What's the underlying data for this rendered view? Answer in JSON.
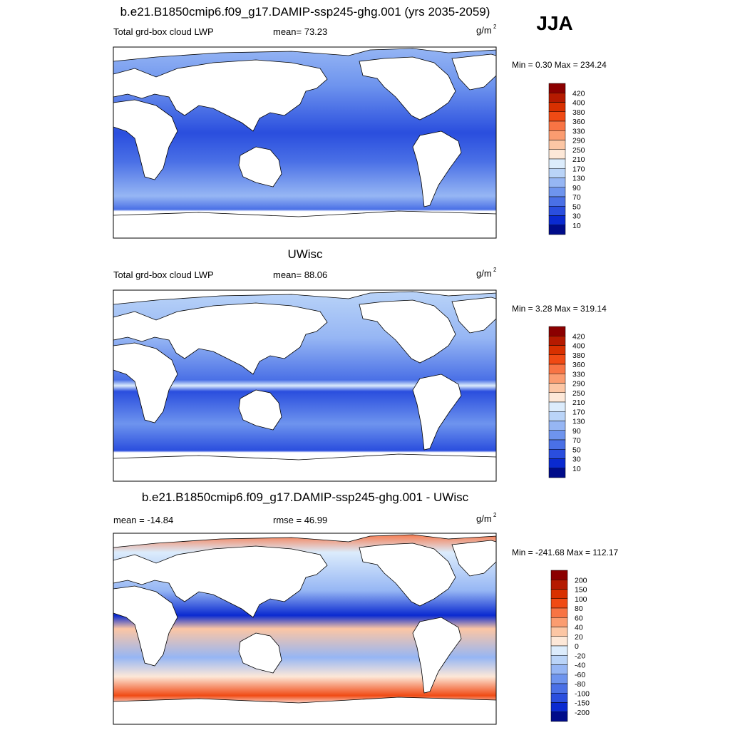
{
  "super_title": "JJA",
  "panels": [
    {
      "title": "b.e21.B1850cmip6.f09_g17.DAMIP-ssp245-ghg.001 (yrs 2035-2059)",
      "left_label": "Total grd-box cloud LWP",
      "center_label": "mean=  73.23",
      "units": "g/m",
      "units_exponent": "2",
      "min_max": "Min =   0.30 Max = 234.24",
      "colorbar": {
        "labels": [
          "420",
          "400",
          "380",
          "360",
          "330",
          "290",
          "250",
          "210",
          "170",
          "130",
          "90",
          "70",
          "50",
          "30",
          "10"
        ],
        "colors": [
          "#8b0000",
          "#b51a00",
          "#d83000",
          "#f04a14",
          "#f87444",
          "#fb9c70",
          "#fcc6a4",
          "#fde8d8",
          "#dcecfc",
          "#bad4f8",
          "#96b6f4",
          "#6e94ee",
          "#4a70e6",
          "#2a4ede",
          "#0a2ad0",
          "#000c8a"
        ]
      }
    },
    {
      "title": "UWisc",
      "left_label": "Total grd-box cloud LWP",
      "center_label": "mean=  88.06",
      "units": "g/m",
      "units_exponent": "2",
      "min_max": "Min =   3.28 Max = 319.14",
      "colorbar": {
        "labels": [
          "420",
          "400",
          "380",
          "360",
          "330",
          "290",
          "250",
          "210",
          "170",
          "130",
          "90",
          "70",
          "50",
          "30",
          "10"
        ],
        "colors": [
          "#8b0000",
          "#b51a00",
          "#d83000",
          "#f04a14",
          "#f87444",
          "#fb9c70",
          "#fcc6a4",
          "#fde8d8",
          "#dcecfc",
          "#bad4f8",
          "#96b6f4",
          "#6e94ee",
          "#4a70e6",
          "#2a4ede",
          "#0a2ad0",
          "#000c8a"
        ]
      }
    },
    {
      "title": "b.e21.B1850cmip6.f09_g17.DAMIP-ssp245-ghg.001 - UWisc",
      "left_label": "mean = -14.84",
      "center_label": "rmse =  46.99",
      "units": "g/m",
      "units_exponent": "2",
      "min_max": "Min = -241.68 Max = 112.17",
      "colorbar": {
        "labels": [
          "200",
          "150",
          "100",
          "80",
          "60",
          "40",
          "20",
          "0",
          "-20",
          "-40",
          "-60",
          "-80",
          "-100",
          "-150",
          "-200"
        ],
        "colors": [
          "#8b0000",
          "#b51a00",
          "#d83000",
          "#f04a14",
          "#f87444",
          "#fb9c70",
          "#fcc6a4",
          "#fde8d8",
          "#dcecfc",
          "#bad4f8",
          "#96b6f4",
          "#6e94ee",
          "#4a70e6",
          "#2a4ede",
          "#0a2ad0",
          "#000c8a"
        ]
      }
    }
  ]
}
